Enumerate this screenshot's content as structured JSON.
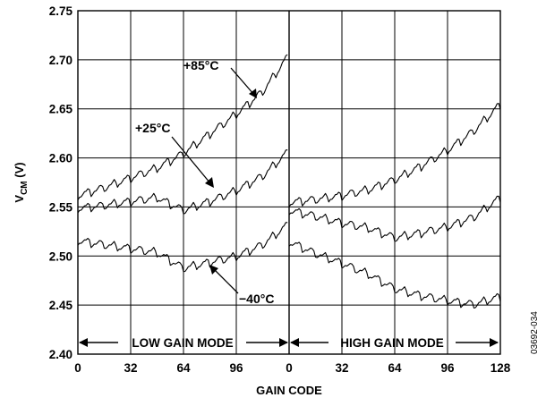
{
  "chart_data": {
    "type": "line",
    "ylabel_main": "V",
    "ylabel_sub": "CM",
    "ylabel_unit": " (V)",
    "xlabel": "GAIN CODE",
    "ylim": [
      2.4,
      2.75
    ],
    "y_ticks": [
      "2.40",
      "2.45",
      "2.50",
      "2.55",
      "2.60",
      "2.65",
      "2.70",
      "2.75"
    ],
    "x_tick_labels": [
      "0",
      "32",
      "64",
      "96",
      "0",
      "32",
      "64",
      "96",
      "128"
    ],
    "grid": true,
    "x_segments": [
      {
        "label": "LOW GAIN MODE",
        "range": [
          0,
          127
        ]
      },
      {
        "label": "HIGH GAIN MODE",
        "range": [
          0,
          128
        ]
      }
    ],
    "series": [
      {
        "name": "+85°C",
        "low_gain": {
          "x": [
            0,
            16,
            32,
            48,
            64,
            80,
            96,
            112,
            127
          ],
          "y": [
            2.562,
            2.57,
            2.58,
            2.59,
            2.605,
            2.625,
            2.645,
            2.668,
            2.703
          ]
        },
        "high_gain": {
          "x": [
            0,
            16,
            32,
            48,
            64,
            80,
            96,
            112,
            128
          ],
          "y": [
            2.555,
            2.558,
            2.562,
            2.568,
            2.578,
            2.592,
            2.608,
            2.628,
            2.655
          ]
        }
      },
      {
        "name": "+25°C",
        "low_gain": {
          "x": [
            0,
            16,
            32,
            48,
            64,
            80,
            96,
            112,
            127
          ],
          "y": [
            2.549,
            2.552,
            2.556,
            2.56,
            2.547,
            2.556,
            2.567,
            2.582,
            2.606
          ]
        },
        "high_gain": {
          "x": [
            0,
            16,
            32,
            48,
            64,
            80,
            96,
            112,
            128
          ],
          "y": [
            2.547,
            2.541,
            2.534,
            2.529,
            2.519,
            2.524,
            2.53,
            2.54,
            2.56
          ]
        }
      },
      {
        "name": "−40°C",
        "low_gain": {
          "x": [
            0,
            16,
            32,
            48,
            64,
            80,
            96,
            112,
            127
          ],
          "y": [
            2.516,
            2.512,
            2.508,
            2.504,
            2.488,
            2.494,
            2.5,
            2.512,
            2.532
          ]
        },
        "high_gain": {
          "x": [
            0,
            16,
            32,
            48,
            64,
            80,
            96,
            112,
            128
          ],
          "y": [
            2.515,
            2.503,
            2.493,
            2.482,
            2.467,
            2.46,
            2.455,
            2.451,
            2.459
          ]
        }
      }
    ],
    "annotations": [
      "+85°C",
      "+25°C",
      "−40°C"
    ]
  },
  "figure_id": "03692-034"
}
